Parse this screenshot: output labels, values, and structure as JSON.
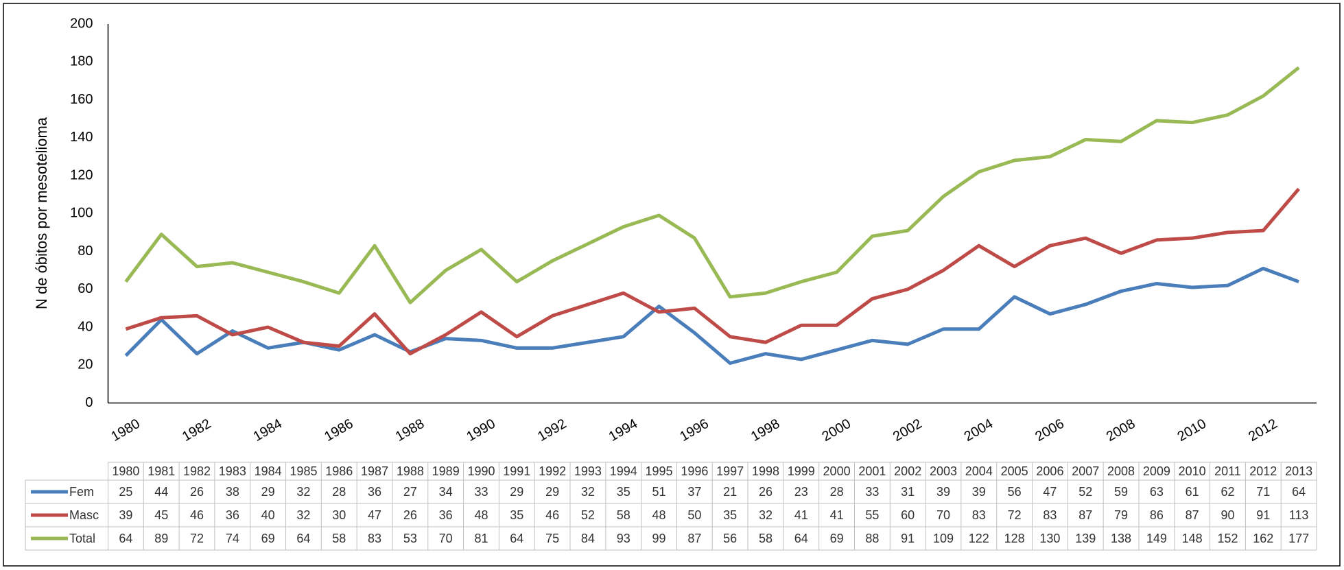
{
  "chart_data": {
    "type": "line",
    "y_label": "N de óbitos por mesotelioma",
    "categories": [
      "1980",
      "1981",
      "1982",
      "1983",
      "1984",
      "1985",
      "1986",
      "1987",
      "1988",
      "1989",
      "1990",
      "1991",
      "1992",
      "1993",
      "1994",
      "1995",
      "1996",
      "1997",
      "1998",
      "1999",
      "2000",
      "2001",
      "2002",
      "2003",
      "2004",
      "2005",
      "2006",
      "2007",
      "2008",
      "2009",
      "2010",
      "2011",
      "2012",
      "2013"
    ],
    "series": [
      {
        "name": "Fem",
        "color": "#4a7ebb",
        "values": [
          25,
          44,
          26,
          38,
          29,
          32,
          28,
          36,
          27,
          34,
          33,
          29,
          29,
          32,
          35,
          51,
          37,
          21,
          26,
          23,
          28,
          33,
          31,
          39,
          39,
          56,
          47,
          52,
          59,
          63,
          61,
          62,
          71,
          64
        ]
      },
      {
        "name": "Masc",
        "color": "#be4b48",
        "values": [
          39,
          45,
          46,
          36,
          40,
          32,
          30,
          47,
          26,
          36,
          48,
          35,
          46,
          52,
          58,
          48,
          50,
          35,
          32,
          41,
          41,
          55,
          60,
          70,
          83,
          72,
          83,
          87,
          79,
          86,
          87,
          90,
          91,
          113
        ]
      },
      {
        "name": "Total",
        "color": "#98b954",
        "values": [
          64,
          89,
          72,
          74,
          69,
          64,
          58,
          83,
          53,
          70,
          81,
          64,
          75,
          84,
          93,
          99,
          87,
          56,
          58,
          64,
          69,
          88,
          91,
          109,
          122,
          128,
          130,
          139,
          138,
          149,
          148,
          152,
          162,
          177
        ]
      }
    ],
    "ylim": [
      0,
      200
    ],
    "yticks": [
      0,
      20,
      40,
      60,
      80,
      100,
      120,
      140,
      160,
      180,
      200
    ],
    "grid": false
  }
}
